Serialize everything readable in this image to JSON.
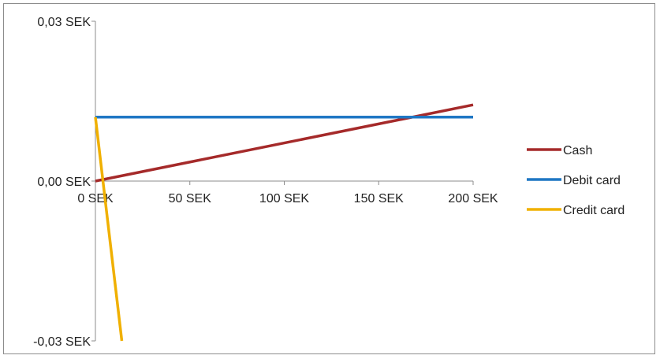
{
  "chart_data": {
    "type": "line",
    "title": "",
    "xlabel": "",
    "ylabel": "",
    "xlim": [
      0,
      200
    ],
    "ylim": [
      -0.03,
      0.03
    ],
    "x_ticks": [
      {
        "value": 0,
        "label": "0 SEK"
      },
      {
        "value": 50,
        "label": "50 SEK"
      },
      {
        "value": 100,
        "label": "100 SEK"
      },
      {
        "value": 150,
        "label": "150 SEK"
      },
      {
        "value": 200,
        "label": "200 SEK"
      }
    ],
    "y_ticks": [
      {
        "value": 0.03,
        "label": "0,03 SEK"
      },
      {
        "value": 0,
        "label": "0,00 SEK"
      },
      {
        "value": -0.03,
        "label": "-0,03 SEK"
      }
    ],
    "grid": false,
    "legend_position": "right",
    "series": [
      {
        "name": "Cash",
        "color": "#a52a2a",
        "x": [
          0,
          200
        ],
        "y": [
          0,
          0.0143
        ]
      },
      {
        "name": "Debit card",
        "color": "#1f77c4",
        "x": [
          0,
          200
        ],
        "y": [
          0.012,
          0.012
        ]
      },
      {
        "name": "Credit card",
        "color": "#f0b000",
        "x": [
          0,
          14
        ],
        "y": [
          0.012,
          -0.03
        ]
      }
    ]
  }
}
